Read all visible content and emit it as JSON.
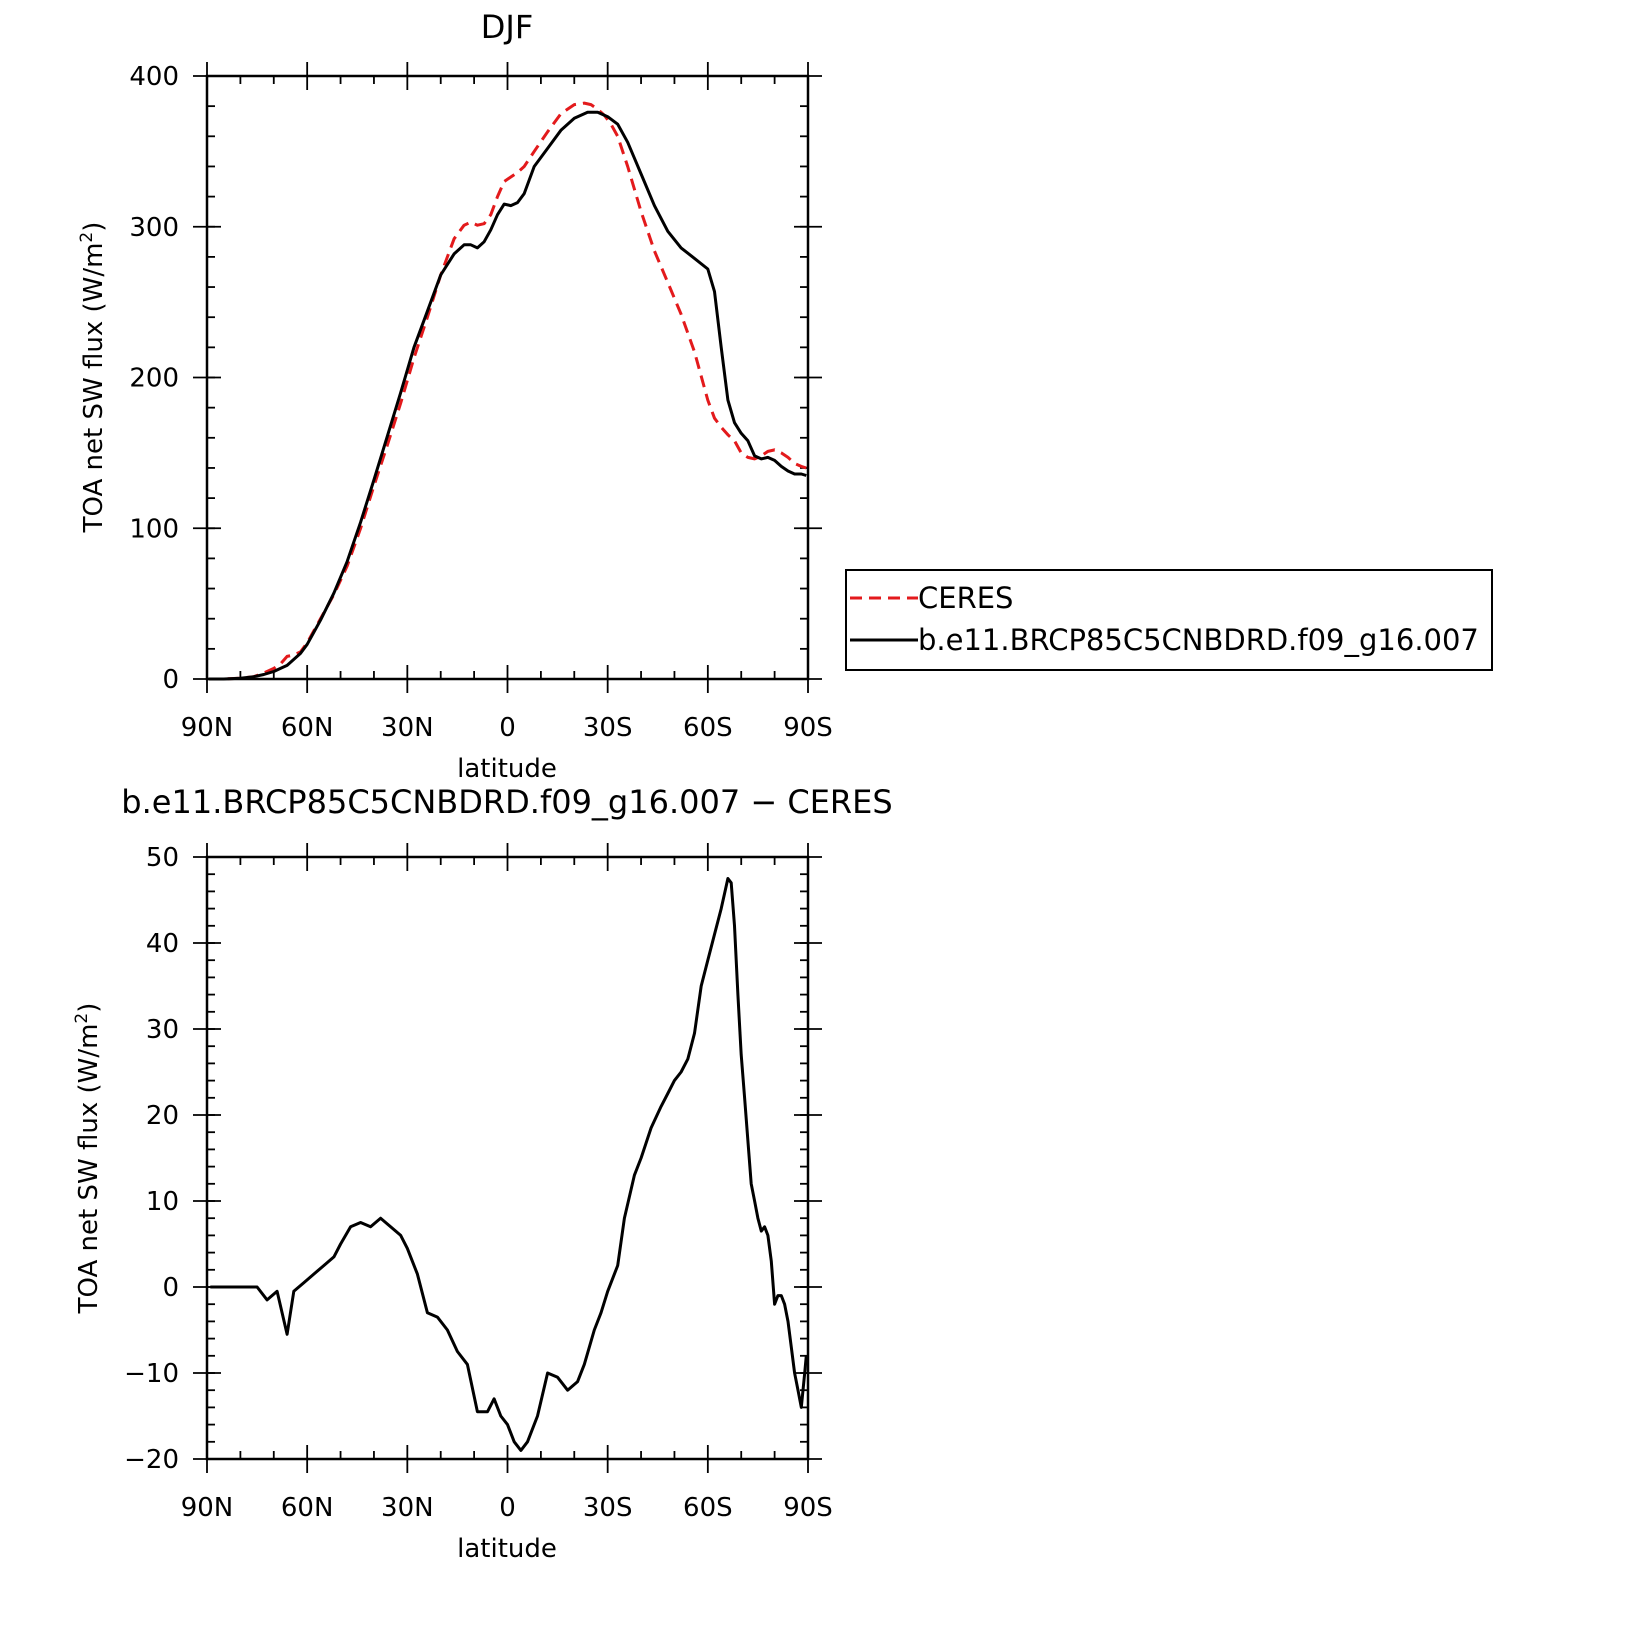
{
  "chart_data": [
    {
      "type": "line",
      "title": "DJF",
      "xlabel": "latitude",
      "ylabel": "TOA net SW flux (W/m²)",
      "ylabel_parts": [
        "TOA net SW flux (W/m",
        "2",
        ")"
      ],
      "xlim": [
        90,
        -90
      ],
      "ylim": [
        0,
        400
      ],
      "x_ticks": [
        90,
        60,
        30,
        0,
        -30,
        -60,
        -90
      ],
      "x_tick_labels": [
        "90N",
        "60N",
        "30N",
        "0",
        "30S",
        "60S",
        "90S"
      ],
      "y_ticks": [
        0,
        100,
        200,
        300,
        400
      ],
      "y_tick_labels": [
        "0",
        "100",
        "200",
        "300",
        "400"
      ],
      "legend_position": "right",
      "series": [
        {
          "name": "CERES",
          "color": "#e31a1c",
          "dash": "dashed",
          "x": [
            89.5,
            85,
            80,
            76,
            73,
            70,
            68,
            66,
            64,
            62,
            60,
            56,
            52,
            48,
            44,
            40,
            36,
            32,
            28,
            24,
            20,
            16,
            13,
            11,
            9,
            7,
            5,
            3,
            1,
            -1,
            -3,
            -5,
            -8,
            -12,
            -16,
            -20,
            -23,
            -25,
            -27,
            -29,
            -31,
            -33,
            -36,
            -40,
            -44,
            -48,
            -52,
            -56,
            -60,
            -62,
            -64,
            -66,
            -68,
            -70,
            -72,
            -74,
            -76,
            -78,
            -80,
            -82,
            -84,
            -86,
            -88,
            -89.5
          ],
          "y": [
            0,
            0,
            0.5,
            1.5,
            4,
            7,
            10,
            15,
            16,
            18,
            24,
            40,
            56,
            75,
            100,
            128,
            155,
            183,
            213,
            240,
            268,
            292,
            301,
            303,
            301,
            302,
            308,
            320,
            330,
            333,
            336,
            340,
            350,
            363,
            375,
            381,
            382,
            381,
            378,
            374,
            368,
            360,
            340,
            310,
            284,
            263,
            242,
            217,
            185,
            173,
            167,
            162,
            158,
            150,
            147,
            146,
            148,
            151,
            152,
            150,
            147,
            143,
            141,
            140
          ]
        },
        {
          "name": "b.e11.BRCP85C5CNBDRD.f09_g16.007",
          "color": "#000000",
          "dash": "solid",
          "x": [
            89.5,
            85,
            80,
            76,
            73,
            70,
            68,
            66,
            64,
            62,
            60,
            56,
            52,
            48,
            44,
            40,
            36,
            32,
            28,
            24,
            20,
            16,
            13,
            11,
            9,
            7,
            5,
            3,
            1,
            -1,
            -3,
            -5,
            -8,
            -12,
            -16,
            -20,
            -24,
            -27,
            -30,
            -33,
            -36,
            -40,
            -44,
            -48,
            -52,
            -56,
            -60,
            -62,
            -64,
            -66,
            -68,
            -70,
            -72,
            -74,
            -76,
            -78,
            -80,
            -82,
            -84,
            -86,
            -88,
            -89.5
          ],
          "y": [
            0,
            0,
            0.5,
            1.5,
            3,
            5,
            7,
            9,
            13,
            17,
            23,
            39,
            57,
            78,
            104,
            132,
            161,
            190,
            220,
            244,
            268,
            282,
            288,
            288,
            286,
            290,
            298,
            308,
            315,
            314,
            316,
            322,
            340,
            352,
            364,
            372,
            376,
            376,
            373,
            368,
            356,
            335,
            314,
            297,
            286,
            279,
            272,
            257,
            220,
            185,
            170,
            163,
            158,
            148,
            146,
            147,
            145,
            141,
            138,
            136,
            136,
            135
          ]
        }
      ]
    },
    {
      "type": "line",
      "title": "b.e11.BRCP85C5CNBDRD.f09_g16.007 − CERES",
      "xlabel": "latitude",
      "ylabel": "TOA net SW flux (W/m²)",
      "ylabel_parts": [
        "TOA net SW flux (W/m",
        "2",
        ")"
      ],
      "xlim": [
        90,
        -90
      ],
      "ylim": [
        -20,
        50
      ],
      "x_ticks": [
        90,
        60,
        30,
        0,
        -30,
        -60,
        -90
      ],
      "x_tick_labels": [
        "90N",
        "60N",
        "30N",
        "0",
        "30S",
        "60S",
        "90S"
      ],
      "y_ticks": [
        -20,
        -10,
        0,
        10,
        20,
        30,
        40,
        50
      ],
      "y_tick_labels": [
        "−20",
        "−10",
        "0",
        "10",
        "20",
        "30",
        "40",
        "50"
      ],
      "series": [
        {
          "color": "#000000",
          "dash": "solid",
          "x": [
            89,
            84,
            78,
            75,
            72,
            69,
            66,
            64,
            61,
            58,
            55,
            52,
            50,
            47,
            44,
            41,
            38,
            35,
            32,
            30,
            27,
            24,
            21,
            18,
            15,
            12,
            9,
            6,
            4,
            2,
            0,
            -2,
            -4,
            -6,
            -9,
            -12,
            -15,
            -18,
            -21,
            -23,
            -26,
            -28,
            -30,
            -33,
            -35,
            -38,
            -40,
            -43,
            -46,
            -48,
            -50,
            -52,
            -54,
            -56,
            -58,
            -60,
            -62,
            -64,
            -66,
            -67,
            -68,
            -69,
            -70,
            -71,
            -72,
            -73,
            -74,
            -75,
            -76,
            -77,
            -78,
            -79,
            -80,
            -81,
            -82,
            -83,
            -84,
            -85,
            -86,
            -87,
            -88,
            -89,
            -89.5
          ],
          "y": [
            0,
            0,
            0,
            0,
            -1.5,
            -0.5,
            -5.5,
            -0.5,
            0.5,
            1.5,
            2.5,
            3.5,
            5,
            7,
            7.5,
            7,
            8,
            7,
            6,
            4.5,
            1.5,
            -3,
            -3.5,
            -5,
            -7.5,
            -9,
            -14.5,
            -14.5,
            -13,
            -15,
            -16,
            -18,
            -19,
            -18,
            -15,
            -10,
            -10.5,
            -12,
            -11,
            -9,
            -5,
            -3,
            -0.5,
            2.5,
            8,
            13,
            15,
            18.5,
            21,
            22.5,
            24,
            25,
            26.5,
            29.5,
            35,
            38,
            41,
            44,
            47.5,
            47,
            42,
            34,
            27,
            22,
            17,
            12,
            10,
            8,
            6.5,
            7,
            6,
            3,
            -2,
            -1,
            -1,
            -2,
            -4,
            -7,
            -10,
            -12,
            -14,
            -10,
            -8
          ]
        }
      ]
    }
  ]
}
